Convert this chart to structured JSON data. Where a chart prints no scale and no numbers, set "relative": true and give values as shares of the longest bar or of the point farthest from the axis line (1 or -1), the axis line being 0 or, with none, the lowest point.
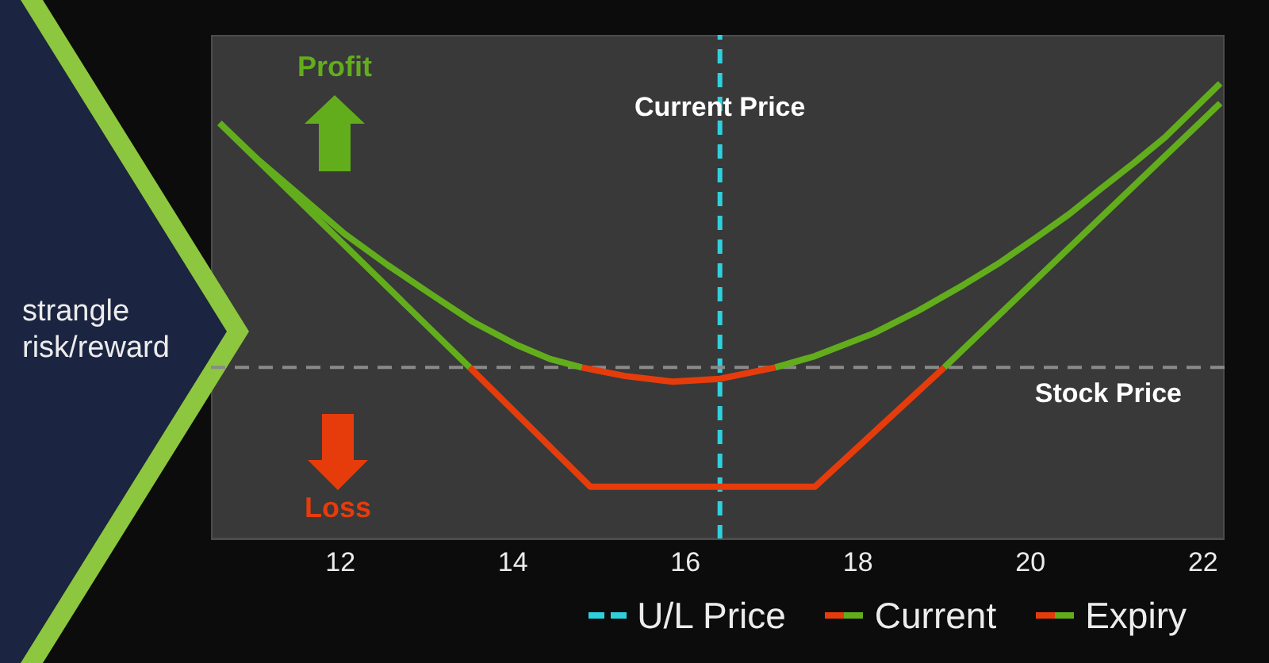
{
  "chart_data": {
    "type": "line",
    "title": "strangle risk/reward",
    "relative": true,
    "xlim": [
      10.5,
      22.25
    ],
    "xticks": [
      12,
      14,
      16,
      18,
      20,
      22
    ],
    "series": [
      {
        "name": "Current",
        "color": "#62ad1c",
        "x": [
          10.6,
          11.05,
          11.55,
          12.05,
          12.55,
          13.04,
          13.54,
          14.04,
          14.43,
          14.8,
          15.85,
          17.04,
          17.5,
          18.18,
          18.7,
          19.22,
          19.65,
          20.08,
          20.45,
          20.82,
          21.2,
          21.56,
          22.2
        ],
        "values": [
          0.86,
          0.73,
          0.6,
          0.47,
          0.36,
          0.26,
          0.16,
          0.08,
          0.03,
          0,
          null,
          0,
          0.04,
          0.12,
          0.2,
          0.29,
          0.37,
          0.46,
          0.54,
          0.63,
          0.72,
          0.81,
          1
        ]
      },
      {
        "color": "#e63c0c",
        "x": [
          14.8,
          15.3,
          15.85,
          16.4,
          17.04
        ],
        "values": [
          0,
          -0.03,
          -0.05,
          -0.04,
          0
        ]
      },
      {
        "name": "Expiry",
        "color": "#62ad1c",
        "x": [
          10.6,
          13.5,
          16.2,
          19.0,
          22.2
        ],
        "values": [
          0.86,
          0,
          null,
          0,
          0.93
        ]
      },
      {
        "color": "#e63c0c",
        "x": [
          13.5,
          14.9,
          17.5,
          19.0
        ],
        "values": [
          0,
          -0.42,
          -0.42,
          0
        ]
      }
    ],
    "ref_lines": [
      {
        "axis": "x",
        "value": 16.4,
        "label": "U/L Price",
        "color": "#2fd0de",
        "line_style": "dashed"
      },
      {
        "axis": "y",
        "value": 0,
        "label": "Stock Price",
        "color": "#8a8a8a",
        "line_style": "dashed"
      }
    ],
    "annotations": [
      {
        "text": "Current Price",
        "x": 16.4,
        "y": 0.92
      },
      "Profit",
      "Loss"
    ],
    "legend": "bottom right"
  }
}
